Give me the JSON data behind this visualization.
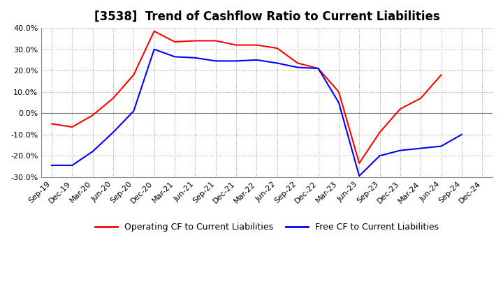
{
  "title": "[3538]  Trend of Cashflow Ratio to Current Liabilities",
  "x_labels": [
    "Sep-19",
    "Dec-19",
    "Mar-20",
    "Jun-20",
    "Sep-20",
    "Dec-20",
    "Mar-21",
    "Jun-21",
    "Sep-21",
    "Dec-21",
    "Mar-22",
    "Jun-22",
    "Sep-22",
    "Dec-22",
    "Mar-23",
    "Jun-23",
    "Sep-23",
    "Dec-23",
    "Mar-24",
    "Jun-24",
    "Sep-24",
    "Dec-24"
  ],
  "op_x": [
    0,
    1,
    2,
    3,
    4,
    5,
    6,
    7,
    8,
    9,
    10,
    11,
    12,
    13,
    14,
    15,
    16,
    17,
    18,
    19,
    20,
    21
  ],
  "op_y": [
    -0.05,
    -0.065,
    -0.01,
    0.07,
    0.18,
    0.385,
    0.335,
    0.34,
    0.34,
    0.32,
    0.32,
    0.305,
    0.235,
    0.21,
    0.1,
    -0.235,
    -0.09,
    0.02,
    0.07,
    0.18,
    null,
    null
  ],
  "fr_x": [
    0,
    1,
    2,
    3,
    4,
    5,
    6,
    7,
    8,
    9,
    10,
    11,
    12,
    13,
    14,
    15,
    16,
    17,
    18,
    19,
    20,
    21
  ],
  "fr_y": [
    -0.245,
    -0.245,
    -0.18,
    -0.09,
    0.01,
    0.3,
    0.265,
    0.26,
    0.245,
    0.245,
    0.25,
    0.235,
    0.215,
    0.21,
    0.05,
    -0.295,
    -0.2,
    -0.175,
    -0.165,
    -0.155,
    -0.1,
    null
  ],
  "ylim": [
    -0.3,
    0.4
  ],
  "yticks": [
    -0.3,
    -0.2,
    -0.1,
    0.0,
    0.1,
    0.2,
    0.3,
    0.4
  ],
  "operating_color": "#ff0000",
  "free_color": "#0000ff",
  "background_color": "#ffffff",
  "grid_color": "#999999",
  "title_fontsize": 12,
  "legend_fontsize": 9,
  "tick_fontsize": 8
}
